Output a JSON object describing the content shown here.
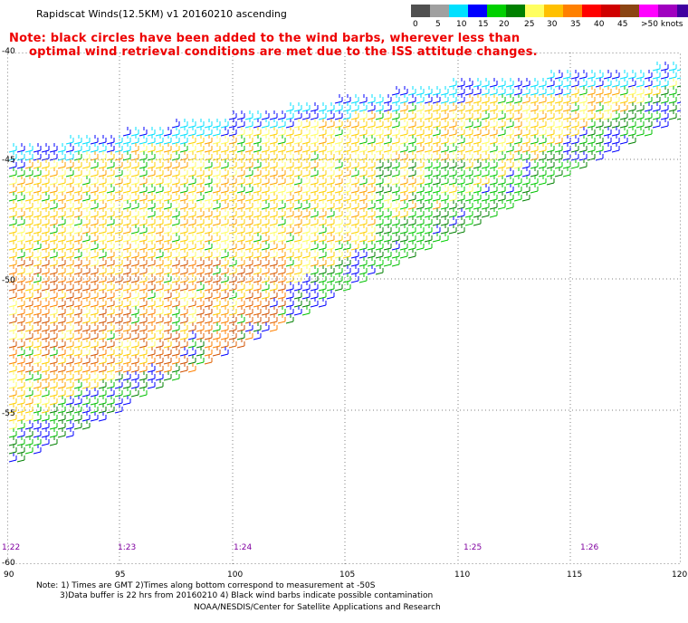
{
  "header": {
    "title": "Rapidscat Winds(12.5KM)  v1  20160210  ascending",
    "note_line1": "Note: black circles have been added to the wind barbs, wherever less than",
    "note_line2": "optimal wind retrieval conditions are met due to the ISS attitude changes."
  },
  "colorbar": {
    "colors": [
      "#505050",
      "#a0a0a0",
      "#00e0ff",
      "#0000ff",
      "#00d000",
      "#008000",
      "#ffff60",
      "#ffc000",
      "#ff8000",
      "#ff0000",
      "#d00000",
      "#8b4513",
      "#ff00ff",
      "#a000c0",
      "#4000a0"
    ],
    "labels": [
      "0",
      "5",
      "10",
      "15",
      "20",
      "25",
      "30",
      "35",
      "40",
      "45",
      ">50 knots"
    ]
  },
  "map": {
    "lat_labels": [
      "-40",
      "-45",
      "-50",
      "-55",
      "-60"
    ],
    "lon_labels": [
      "90",
      "95",
      "100",
      "105",
      "110",
      "115",
      "120"
    ],
    "time_labels": [
      "1:22",
      "1:23",
      "1:24",
      "1:25",
      "1:26"
    ]
  },
  "footer": {
    "line1": "Note: 1) Times are GMT 2)Times along bottom correspond to measurement at -50S",
    "line2": "3)Data buffer is 22 hrs from 20160210 4) Black wind barbs indicate possible contamination",
    "line3": "NOAA/NESDIS/Center for Satellite Applications and Research"
  }
}
